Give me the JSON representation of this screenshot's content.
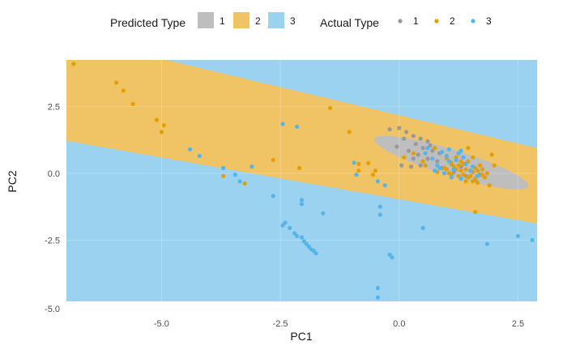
{
  "chart_data": {
    "type": "scatter",
    "xlabel": "PC1",
    "ylabel": "PC2",
    "xlim": [
      -7.0,
      2.9
    ],
    "ylim": [
      -4.8,
      4.25
    ],
    "x_ticks": [
      -5.0,
      -2.5,
      0.0,
      2.5
    ],
    "x_tick_labels": [
      "-5.0",
      "-2.5",
      "0.0",
      "2.5"
    ],
    "y_ticks": [
      -5.0,
      -2.5,
      0.0,
      2.5
    ],
    "y_tick_labels": [
      "-5.0",
      "-2.5",
      "0.0",
      "2.5"
    ],
    "grid": true,
    "legend_position": "top",
    "legend": {
      "fill_title": "Predicted Type",
      "fill_entries": [
        {
          "label": "1",
          "color": "#bebebe"
        },
        {
          "label": "2",
          "color": "#f0c465"
        },
        {
          "label": "3",
          "color": "#9bd2f0"
        }
      ],
      "point_title": "Actual Type",
      "point_entries": [
        {
          "label": "1",
          "color": "#999999"
        },
        {
          "label": "2",
          "color": "#e69f00"
        },
        {
          "label": "3",
          "color": "#56b4e9"
        }
      ]
    },
    "regions": {
      "class_2_band": {
        "upper_boundary": [
          [
            -7.0,
            4.25
          ],
          [
            -4.9,
            4.25
          ],
          [
            2.9,
            0.95
          ]
        ],
        "lower_boundary": [
          [
            -7.0,
            1.22
          ],
          [
            2.9,
            -1.88
          ]
        ]
      },
      "class_1_ellipse": {
        "center": [
          1.1,
          0.4
        ],
        "semi_major": 1.85,
        "semi_minor": 0.45,
        "angle_deg": -30
      }
    },
    "series": [
      {
        "name": "1",
        "color": "#999999",
        "points": [
          [
            -0.2,
            1.65
          ],
          [
            0.0,
            1.7
          ],
          [
            0.15,
            1.55
          ],
          [
            0.3,
            1.4
          ],
          [
            0.45,
            1.3
          ],
          [
            0.6,
            1.2
          ],
          [
            0.1,
            1.3
          ],
          [
            0.35,
            1.1
          ],
          [
            0.5,
            0.95
          ],
          [
            0.7,
            0.85
          ],
          [
            0.85,
            0.75
          ],
          [
            1.0,
            0.65
          ],
          [
            -0.05,
            1.0
          ],
          [
            0.2,
            0.85
          ],
          [
            0.4,
            0.7
          ],
          [
            0.6,
            0.55
          ],
          [
            0.8,
            0.45
          ],
          [
            1.1,
            0.35
          ],
          [
            1.3,
            0.25
          ],
          [
            1.5,
            0.1
          ],
          [
            1.7,
            -0.05
          ],
          [
            0.05,
            0.3
          ],
          [
            0.25,
            0.25
          ],
          [
            0.45,
            0.3
          ],
          [
            0.9,
            0.2
          ],
          [
            1.15,
            0.05
          ],
          [
            1.4,
            -0.1
          ],
          [
            1.6,
            -0.25
          ],
          [
            0.65,
            1.05
          ],
          [
            0.3,
            0.55
          ]
        ]
      },
      {
        "name": "2",
        "color": "#e69f00",
        "points": [
          [
            -6.85,
            4.1
          ],
          [
            -5.95,
            3.4
          ],
          [
            -5.8,
            3.1
          ],
          [
            -5.6,
            2.6
          ],
          [
            -5.1,
            2.0
          ],
          [
            -4.95,
            1.8
          ],
          [
            -5.0,
            1.55
          ],
          [
            -1.45,
            2.45
          ],
          [
            -1.05,
            1.55
          ],
          [
            -2.65,
            0.5
          ],
          [
            -2.1,
            0.2
          ],
          [
            -3.7,
            -0.1
          ],
          [
            -3.25,
            -0.38
          ],
          [
            -0.85,
            0.35
          ],
          [
            -0.65,
            0.38
          ],
          [
            -0.85,
            0.1
          ],
          [
            -0.55,
            -0.05
          ],
          [
            -0.5,
            0.1
          ],
          [
            0.1,
            0.6
          ],
          [
            0.3,
            0.75
          ],
          [
            0.5,
            0.45
          ],
          [
            0.55,
            0.3
          ],
          [
            0.75,
            0.95
          ],
          [
            0.8,
            0.05
          ],
          [
            1.0,
            0.55
          ],
          [
            1.1,
            0.4
          ],
          [
            1.2,
            0.6
          ],
          [
            1.25,
            0.3
          ],
          [
            1.3,
            0.1
          ],
          [
            1.35,
            -0.05
          ],
          [
            1.4,
            0.15
          ],
          [
            1.45,
            0.45
          ],
          [
            1.5,
            -0.1
          ],
          [
            1.55,
            0.05
          ],
          [
            1.6,
            -0.2
          ],
          [
            1.65,
            0.1
          ],
          [
            1.7,
            0.3
          ],
          [
            1.75,
            -0.05
          ],
          [
            1.8,
            -0.15
          ],
          [
            1.85,
            0.0
          ],
          [
            1.65,
            -0.35
          ],
          [
            1.25,
            -0.1
          ],
          [
            1.0,
            0.15
          ],
          [
            1.1,
            -0.05
          ],
          [
            1.4,
            -0.3
          ],
          [
            1.55,
            0.6
          ],
          [
            1.95,
            0.7
          ],
          [
            2.0,
            0.3
          ],
          [
            1.45,
            0.95
          ],
          [
            1.9,
            -0.45
          ],
          [
            0.95,
            0.2
          ],
          [
            1.15,
            0.25
          ],
          [
            1.05,
            0.0
          ],
          [
            1.3,
            0.45
          ],
          [
            1.6,
            0.2
          ],
          [
            1.75,
            0.15
          ],
          [
            1.45,
            -0.15
          ],
          [
            1.2,
            0.15
          ],
          [
            1.35,
            0.35
          ],
          [
            1.55,
            -0.3
          ],
          [
            1.6,
            -1.45
          ]
        ]
      },
      {
        "name": "3",
        "color": "#56b4e9",
        "points": [
          [
            -4.4,
            0.9
          ],
          [
            -4.2,
            0.65
          ],
          [
            -3.7,
            0.2
          ],
          [
            -3.45,
            -0.05
          ],
          [
            -3.35,
            -0.3
          ],
          [
            -3.1,
            0.25
          ],
          [
            -2.65,
            -0.85
          ],
          [
            -2.45,
            1.85
          ],
          [
            -2.15,
            1.75
          ],
          [
            -2.05,
            -1.0
          ],
          [
            -2.05,
            -1.15
          ],
          [
            -1.6,
            -1.5
          ],
          [
            -0.95,
            0.4
          ],
          [
            -0.9,
            -0.05
          ],
          [
            -0.45,
            -0.3
          ],
          [
            -0.4,
            -1.25
          ],
          [
            -0.4,
            -1.55
          ],
          [
            -0.3,
            -0.45
          ],
          [
            -0.2,
            -3.05
          ],
          [
            -0.15,
            -3.15
          ],
          [
            -0.45,
            -4.3
          ],
          [
            -0.45,
            -4.65
          ],
          [
            0.5,
            -2.05
          ],
          [
            1.85,
            -2.65
          ],
          [
            2.5,
            -2.35
          ],
          [
            2.8,
            -2.5
          ],
          [
            -2.45,
            -1.95
          ],
          [
            -2.4,
            -1.85
          ],
          [
            -2.3,
            -2.05
          ],
          [
            -2.2,
            -2.25
          ],
          [
            -2.15,
            -2.35
          ],
          [
            -2.05,
            -2.4
          ],
          [
            -2.0,
            -2.55
          ],
          [
            -1.95,
            -2.65
          ],
          [
            -1.9,
            -2.75
          ],
          [
            -1.85,
            -2.85
          ],
          [
            -1.8,
            -2.9
          ],
          [
            -1.75,
            -3.0
          ],
          [
            0.55,
            0.75
          ],
          [
            0.7,
            0.55
          ],
          [
            0.8,
            0.3
          ],
          [
            0.9,
            0.8
          ],
          [
            1.0,
            0.65
          ],
          [
            1.05,
            0.45
          ],
          [
            1.2,
            0.5
          ],
          [
            1.25,
            0.75
          ],
          [
            1.35,
            0.6
          ],
          [
            1.15,
            0.15
          ],
          [
            1.4,
            0.35
          ],
          [
            1.55,
            0.25
          ],
          [
            0.85,
            0.2
          ],
          [
            0.95,
            0.0
          ],
          [
            1.1,
            -0.15
          ],
          [
            1.3,
            -0.2
          ],
          [
            1.5,
            0.1
          ],
          [
            1.65,
            -0.1
          ],
          [
            0.75,
            0.1
          ],
          [
            1.05,
            0.9
          ],
          [
            1.3,
            0.85
          ],
          [
            0.6,
            0.95
          ]
        ]
      }
    ]
  }
}
